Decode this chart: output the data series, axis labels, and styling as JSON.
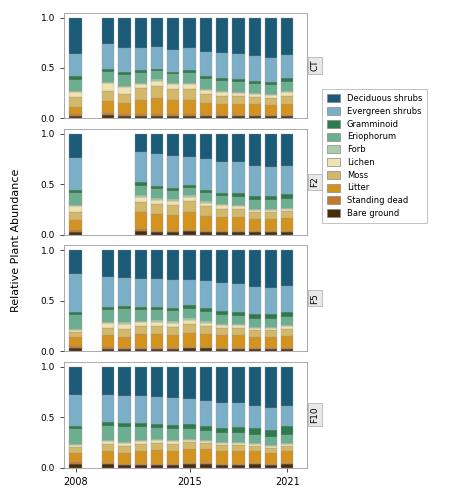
{
  "treatments": [
    "CT",
    "F2",
    "F5",
    "F10"
  ],
  "categories": [
    "Bare ground",
    "Standing dead",
    "Litter",
    "Moss",
    "Lichen",
    "Forb",
    "Eriophorum",
    "Gramminoid",
    "Evergreen shrubs",
    "Deciduous shrubs"
  ],
  "colors": [
    "#4A2C0A",
    "#C17A2A",
    "#D4921E",
    "#D4B86A",
    "#EFE4B0",
    "#A8CCAC",
    "#6BAF90",
    "#2D7A4F",
    "#7BAFC8",
    "#1B5B78"
  ],
  "treatment_years": {
    "CT": [
      2008,
      2010,
      2011,
      2012,
      2013,
      2014,
      2015,
      2016,
      2017,
      2018,
      2019,
      2020,
      2021
    ],
    "F2": [
      2008,
      2012,
      2013,
      2014,
      2015,
      2016,
      2017,
      2018,
      2019,
      2020,
      2021
    ],
    "F5": [
      2008,
      2010,
      2011,
      2012,
      2013,
      2014,
      2015,
      2016,
      2017,
      2018,
      2019,
      2020,
      2021
    ],
    "F10": [
      2008,
      2010,
      2011,
      2012,
      2013,
      2014,
      2015,
      2016,
      2017,
      2018,
      2019,
      2020,
      2021
    ]
  },
  "data": {
    "CT": {
      "2008": [
        0.02,
        0.02,
        0.07,
        0.1,
        0.05,
        0.01,
        0.11,
        0.04,
        0.22,
        0.36
      ],
      "2010": [
        0.03,
        0.02,
        0.12,
        0.1,
        0.08,
        0.01,
        0.1,
        0.03,
        0.25,
        0.26
      ],
      "2011": [
        0.02,
        0.02,
        0.11,
        0.09,
        0.07,
        0.01,
        0.11,
        0.03,
        0.24,
        0.3
      ],
      "2012": [
        0.02,
        0.02,
        0.14,
        0.12,
        0.04,
        0.01,
        0.1,
        0.03,
        0.22,
        0.3
      ],
      "2013": [
        0.02,
        0.02,
        0.16,
        0.12,
        0.05,
        0.02,
        0.08,
        0.02,
        0.22,
        0.29
      ],
      "2014": [
        0.02,
        0.02,
        0.14,
        0.11,
        0.05,
        0.01,
        0.09,
        0.02,
        0.22,
        0.32
      ],
      "2015": [
        0.02,
        0.02,
        0.14,
        0.11,
        0.05,
        0.01,
        0.1,
        0.03,
        0.22,
        0.3
      ],
      "2016": [
        0.02,
        0.01,
        0.12,
        0.09,
        0.04,
        0.01,
        0.1,
        0.03,
        0.24,
        0.34
      ],
      "2017": [
        0.02,
        0.01,
        0.11,
        0.08,
        0.04,
        0.01,
        0.1,
        0.03,
        0.25,
        0.35
      ],
      "2018": [
        0.02,
        0.01,
        0.11,
        0.08,
        0.03,
        0.01,
        0.1,
        0.03,
        0.25,
        0.36
      ],
      "2019": [
        0.02,
        0.01,
        0.11,
        0.07,
        0.03,
        0.01,
        0.09,
        0.03,
        0.25,
        0.38
      ],
      "2020": [
        0.02,
        0.01,
        0.1,
        0.07,
        0.03,
        0.01,
        0.09,
        0.03,
        0.24,
        0.4
      ],
      "2021": [
        0.02,
        0.01,
        0.11,
        0.08,
        0.04,
        0.01,
        0.09,
        0.04,
        0.23,
        0.37
      ]
    },
    "F2": {
      "2008": [
        0.03,
        0.02,
        0.1,
        0.08,
        0.05,
        0.01,
        0.12,
        0.03,
        0.32,
        0.24
      ],
      "2012": [
        0.04,
        0.02,
        0.17,
        0.09,
        0.05,
        0.02,
        0.09,
        0.04,
        0.3,
        0.18
      ],
      "2013": [
        0.03,
        0.01,
        0.17,
        0.09,
        0.04,
        0.02,
        0.09,
        0.03,
        0.32,
        0.2
      ],
      "2014": [
        0.03,
        0.01,
        0.16,
        0.09,
        0.04,
        0.02,
        0.08,
        0.03,
        0.32,
        0.22
      ],
      "2015": [
        0.04,
        0.01,
        0.18,
        0.1,
        0.04,
        0.02,
        0.07,
        0.03,
        0.28,
        0.23
      ],
      "2016": [
        0.03,
        0.01,
        0.15,
        0.09,
        0.03,
        0.02,
        0.08,
        0.03,
        0.31,
        0.25
      ],
      "2017": [
        0.03,
        0.01,
        0.14,
        0.08,
        0.03,
        0.01,
        0.08,
        0.03,
        0.31,
        0.28
      ],
      "2018": [
        0.03,
        0.01,
        0.14,
        0.08,
        0.02,
        0.01,
        0.08,
        0.04,
        0.31,
        0.28
      ],
      "2019": [
        0.03,
        0.01,
        0.12,
        0.07,
        0.02,
        0.01,
        0.08,
        0.04,
        0.3,
        0.32
      ],
      "2020": [
        0.03,
        0.01,
        0.12,
        0.07,
        0.02,
        0.01,
        0.08,
        0.04,
        0.29,
        0.33
      ],
      "2021": [
        0.03,
        0.01,
        0.13,
        0.07,
        0.02,
        0.01,
        0.08,
        0.05,
        0.28,
        0.32
      ]
    },
    "F5": {
      "2008": [
        0.03,
        0.02,
        0.09,
        0.05,
        0.02,
        0.01,
        0.14,
        0.03,
        0.38,
        0.23
      ],
      "2010": [
        0.02,
        0.02,
        0.12,
        0.07,
        0.05,
        0.01,
        0.12,
        0.03,
        0.3,
        0.26
      ],
      "2011": [
        0.02,
        0.01,
        0.11,
        0.08,
        0.05,
        0.02,
        0.13,
        0.03,
        0.28,
        0.27
      ],
      "2012": [
        0.02,
        0.01,
        0.14,
        0.08,
        0.04,
        0.01,
        0.11,
        0.03,
        0.28,
        0.28
      ],
      "2013": [
        0.02,
        0.01,
        0.14,
        0.08,
        0.04,
        0.02,
        0.1,
        0.03,
        0.28,
        0.28
      ],
      "2014": [
        0.02,
        0.01,
        0.13,
        0.08,
        0.04,
        0.02,
        0.1,
        0.03,
        0.28,
        0.29
      ],
      "2015": [
        0.03,
        0.01,
        0.14,
        0.09,
        0.04,
        0.02,
        0.09,
        0.04,
        0.25,
        0.29
      ],
      "2016": [
        0.03,
        0.01,
        0.13,
        0.08,
        0.03,
        0.02,
        0.09,
        0.04,
        0.27,
        0.3
      ],
      "2017": [
        0.02,
        0.01,
        0.13,
        0.07,
        0.03,
        0.01,
        0.09,
        0.04,
        0.28,
        0.32
      ],
      "2018": [
        0.02,
        0.01,
        0.13,
        0.07,
        0.03,
        0.01,
        0.08,
        0.04,
        0.28,
        0.33
      ],
      "2019": [
        0.02,
        0.01,
        0.11,
        0.07,
        0.02,
        0.01,
        0.08,
        0.05,
        0.27,
        0.36
      ],
      "2020": [
        0.02,
        0.01,
        0.11,
        0.07,
        0.02,
        0.01,
        0.08,
        0.05,
        0.26,
        0.37
      ],
      "2021": [
        0.02,
        0.01,
        0.12,
        0.07,
        0.03,
        0.01,
        0.08,
        0.05,
        0.26,
        0.35
      ]
    },
    "F10": {
      "2008": [
        0.03,
        0.02,
        0.09,
        0.06,
        0.02,
        0.01,
        0.15,
        0.03,
        0.31,
        0.28
      ],
      "2010": [
        0.03,
        0.01,
        0.12,
        0.07,
        0.03,
        0.01,
        0.14,
        0.04,
        0.27,
        0.28
      ],
      "2011": [
        0.02,
        0.01,
        0.11,
        0.07,
        0.03,
        0.01,
        0.15,
        0.04,
        0.27,
        0.29
      ],
      "2012": [
        0.02,
        0.01,
        0.13,
        0.07,
        0.03,
        0.01,
        0.13,
        0.04,
        0.27,
        0.29
      ],
      "2013": [
        0.02,
        0.01,
        0.14,
        0.07,
        0.03,
        0.01,
        0.11,
        0.04,
        0.27,
        0.3
      ],
      "2014": [
        0.02,
        0.01,
        0.13,
        0.07,
        0.03,
        0.01,
        0.11,
        0.04,
        0.27,
        0.31
      ],
      "2015": [
        0.03,
        0.01,
        0.14,
        0.07,
        0.02,
        0.01,
        0.1,
        0.05,
        0.25,
        0.32
      ],
      "2016": [
        0.03,
        0.01,
        0.14,
        0.06,
        0.02,
        0.01,
        0.09,
        0.05,
        0.25,
        0.34
      ],
      "2017": [
        0.02,
        0.01,
        0.13,
        0.06,
        0.02,
        0.01,
        0.09,
        0.05,
        0.25,
        0.36
      ],
      "2018": [
        0.02,
        0.01,
        0.13,
        0.06,
        0.02,
        0.01,
        0.09,
        0.06,
        0.24,
        0.36
      ],
      "2019": [
        0.03,
        0.01,
        0.12,
        0.05,
        0.02,
        0.01,
        0.08,
        0.07,
        0.22,
        0.39
      ],
      "2020": [
        0.02,
        0.01,
        0.11,
        0.05,
        0.02,
        0.01,
        0.08,
        0.07,
        0.22,
        0.41
      ],
      "2021": [
        0.03,
        0.01,
        0.12,
        0.05,
        0.02,
        0.01,
        0.08,
        0.09,
        0.2,
        0.39
      ]
    }
  },
  "ylabel": "Relative Plant Abundance",
  "legend_labels": [
    "Deciduous shrubs",
    "Evergreen shrubs",
    "Gramminoid",
    "Eriophorum",
    "Forb",
    "Lichen",
    "Moss",
    "Litter",
    "Standing dead",
    "Bare ground"
  ],
  "legend_colors": [
    "#1B5B78",
    "#7BAFC8",
    "#2D7A4F",
    "#6BAF90",
    "#A8CCAC",
    "#EFE4B0",
    "#D4B86A",
    "#D4921E",
    "#C17A2A",
    "#4A2C0A"
  ]
}
